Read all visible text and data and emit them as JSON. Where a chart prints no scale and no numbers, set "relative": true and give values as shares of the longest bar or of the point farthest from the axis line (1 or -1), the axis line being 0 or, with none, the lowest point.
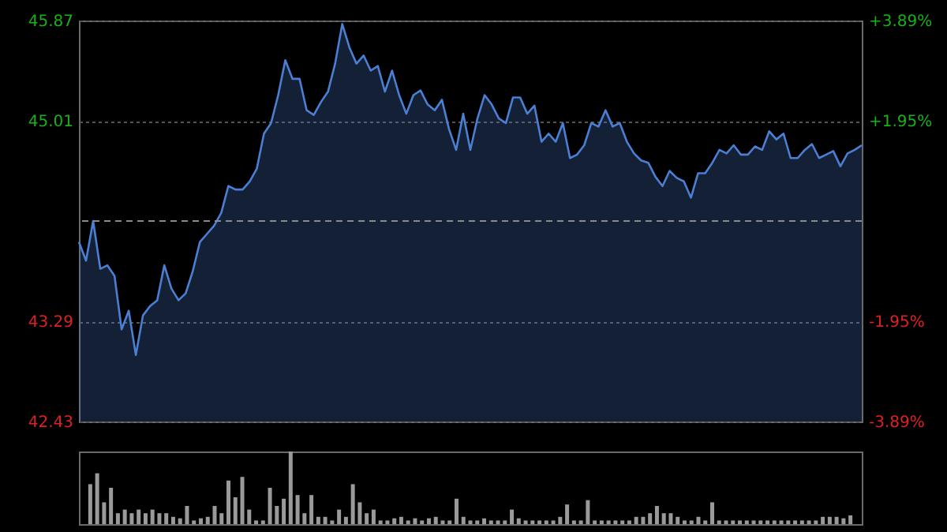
{
  "chart_data": [
    {
      "type": "area",
      "color": "#4a7fd4",
      "categories": [
        null,
        null,
        null,
        null,
        null,
        null,
        null,
        null,
        null,
        null,
        null,
        null,
        null,
        null,
        null,
        null,
        null,
        null,
        null,
        null,
        null,
        null,
        null,
        null,
        null,
        null,
        null,
        null,
        null,
        null,
        null,
        null,
        null,
        null,
        null,
        null,
        null,
        null,
        null,
        null,
        null,
        null,
        null,
        null,
        null,
        null,
        null,
        null,
        null,
        null,
        null,
        null,
        null,
        null,
        null,
        null,
        null,
        null,
        null,
        null,
        null,
        null,
        null,
        null,
        null,
        null,
        null,
        null,
        null,
        null,
        null,
        null,
        null,
        null,
        null,
        null,
        null,
        null,
        null,
        null,
        null,
        null,
        null,
        null,
        null,
        null,
        null,
        null,
        null,
        null,
        null,
        null,
        null,
        null,
        null,
        null,
        null,
        null,
        null,
        null,
        null,
        null,
        null,
        null,
        null,
        null,
        null,
        null,
        null,
        null,
        null
      ],
      "values": [
        43.97,
        43.81,
        44.15,
        43.74,
        43.77,
        43.68,
        43.22,
        43.38,
        43.0,
        43.34,
        43.42,
        43.47,
        43.77,
        43.57,
        43.47,
        43.53,
        43.72,
        43.97,
        44.04,
        44.11,
        44.22,
        44.45,
        44.42,
        44.42,
        44.49,
        44.6,
        44.9,
        44.99,
        45.23,
        45.53,
        45.37,
        45.37,
        45.1,
        45.06,
        45.17,
        45.26,
        45.5,
        45.84,
        45.64,
        45.5,
        45.57,
        45.44,
        45.48,
        45.26,
        45.44,
        45.23,
        45.07,
        45.23,
        45.27,
        45.15,
        45.1,
        45.19,
        44.94,
        44.76,
        45.07,
        44.76,
        45.03,
        45.23,
        45.15,
        45.03,
        44.99,
        45.21,
        45.21,
        45.07,
        45.14,
        44.83,
        44.9,
        44.83,
        44.99,
        44.69,
        44.72,
        44.8,
        44.99,
        44.96,
        45.1,
        44.96,
        44.99,
        44.83,
        44.73,
        44.67,
        44.65,
        44.53,
        44.45,
        44.58,
        44.52,
        44.49,
        44.35,
        44.56,
        44.56,
        44.65,
        44.76,
        44.73,
        44.8,
        44.72,
        44.72,
        44.79,
        44.76,
        44.92,
        44.85,
        44.9,
        44.69,
        44.69,
        44.76,
        44.81,
        44.69,
        44.72,
        44.75,
        44.62,
        44.73,
        44.76,
        44.8
      ],
      "ylim": [
        42.43,
        45.87
      ],
      "yticks": [
        42.43,
        43.29,
        45.01,
        45.87
      ],
      "y2lim": [
        -3.89,
        3.89
      ],
      "y2ticks": [
        {
          "value": -3.89,
          "label": "-3.89%"
        },
        {
          "value": -1.95,
          "label": "-1.95%"
        },
        {
          "value": 1.95,
          "label": "+1.95%"
        },
        {
          "value": 3.89,
          "label": "+3.89%"
        }
      ],
      "ref_lines": [
        {
          "axis": "y2",
          "value": 0,
          "line_style": "dashed",
          "color": "#8a8a8a"
        }
      ],
      "grid": true,
      "tick_labels": "y"
    },
    {
      "type": "bar",
      "relative": true,
      "color": "#9a9a9a",
      "categories": [
        null,
        null,
        null,
        null,
        null,
        null,
        null,
        null,
        null,
        null,
        null,
        null,
        null,
        null,
        null,
        null,
        null,
        null,
        null,
        null,
        null,
        null,
        null,
        null,
        null,
        null,
        null,
        null,
        null,
        null,
        null,
        null,
        null,
        null,
        null,
        null,
        null,
        null,
        null,
        null,
        null,
        null,
        null,
        null,
        null,
        null,
        null,
        null,
        null,
        null,
        null,
        null,
        null,
        null,
        null,
        null,
        null,
        null,
        null,
        null,
        null,
        null,
        null,
        null,
        null,
        null,
        null,
        null,
        null,
        null,
        null,
        null,
        null,
        null,
        null,
        null,
        null,
        null,
        null,
        null,
        null,
        null,
        null,
        null,
        null,
        null,
        null,
        null,
        null,
        null,
        null,
        null,
        null,
        null,
        null,
        null,
        null,
        null,
        null,
        null,
        null,
        null,
        null,
        null,
        null,
        null,
        null,
        null,
        null,
        null,
        null
      ],
      "values": [
        0.55,
        0.7,
        0.3,
        0.5,
        0.15,
        0.2,
        0.15,
        0.2,
        0.15,
        0.2,
        0.15,
        0.15,
        0.1,
        0.08,
        0.25,
        0.05,
        0.08,
        0.1,
        0.25,
        0.15,
        0.6,
        0.37,
        0.65,
        0.2,
        0.05,
        0.05,
        0.5,
        0.25,
        0.35,
        1,
        0.4,
        0.15,
        0.4,
        0.1,
        0.1,
        0.05,
        0.2,
        0.1,
        0.55,
        0.3,
        0.15,
        0.2,
        0.05,
        0.05,
        0.08,
        0.1,
        0.05,
        0.08,
        0.05,
        0.08,
        0.1,
        0.05,
        0.05,
        0.35,
        0.1,
        0.05,
        0.05,
        0.08,
        0.05,
        0.05,
        0.05,
        0.2,
        0.08,
        0.05,
        0.05,
        0.05,
        0.05,
        0.05,
        0.1,
        0.27,
        0.05,
        0.05,
        0.33,
        0.05,
        0.05,
        0.05,
        0.05,
        0.05,
        0.05,
        0.1,
        0.1,
        0.15,
        0.25,
        0.15,
        0.15,
        0.1,
        0.05,
        0.05,
        0.1,
        0.05,
        0.3,
        0.05,
        0.05,
        0.05,
        0.05,
        0.05,
        0.05,
        0.05,
        0.05,
        0.05,
        0.05,
        0.05,
        0.05,
        0.05,
        0.05,
        0.05,
        0.1,
        0.1,
        0.1,
        0.08,
        0.12
      ]
    }
  ]
}
